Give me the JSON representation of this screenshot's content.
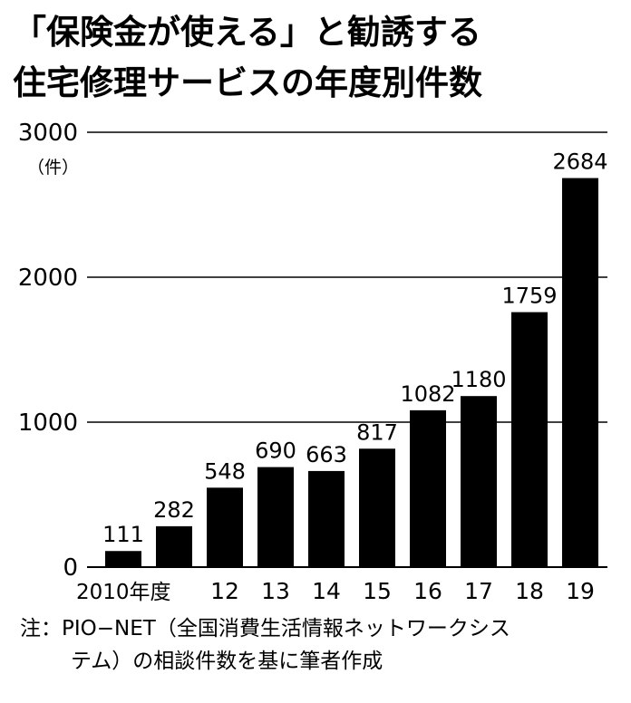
{
  "title_line1": "「保険金が使える」と勧誘する",
  "title_line2": "住宅修理サービスの年度別件数",
  "y_unit": "（件）",
  "note_line1": "注：PIO−NET（全国消費生活情報ネットワークシス",
  "note_line2": "テム）の相談件数を基に筆者作成",
  "colors": {
    "bar": "#000000",
    "grid": "#000000",
    "text": "#000000"
  },
  "chart_data": {
    "type": "bar",
    "title": "「保険金が使える」と勧誘する住宅修理サービスの年度別件数",
    "categories": [
      "2010年度",
      "",
      "12",
      "13",
      "14",
      "15",
      "16",
      "17",
      "18",
      "19"
    ],
    "values": [
      111,
      282,
      548,
      690,
      663,
      817,
      1082,
      1180,
      1759,
      2684
    ],
    "data_labels": [
      "111",
      "282",
      "548",
      "690",
      "663",
      "817",
      "1082",
      "1180",
      "1759",
      "2684"
    ],
    "yticks": [
      "0",
      "1000",
      "2000",
      "3000"
    ],
    "ytick_values": [
      0,
      1000,
      2000,
      3000
    ],
    "ylim": [
      0,
      3000
    ],
    "grid": true,
    "legend": "none"
  }
}
